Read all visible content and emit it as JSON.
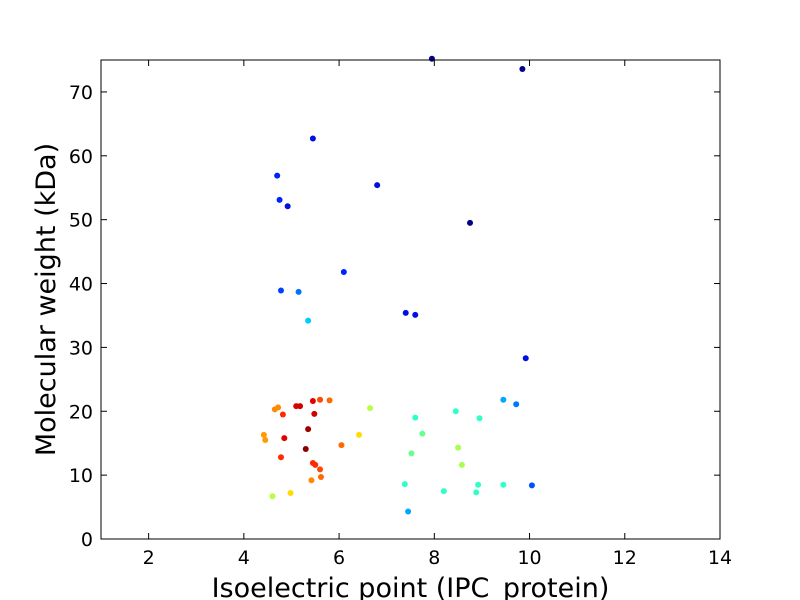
{
  "chart_data": {
    "type": "scatter",
    "xlabel": "Isoelectric point (IPC_protein)",
    "ylabel": "Molecular weight (kDa)",
    "xlim": [
      1,
      14
    ],
    "ylim": [
      0,
      75
    ],
    "xticks": [
      2,
      4,
      6,
      8,
      10,
      12,
      14
    ],
    "yticks": [
      0,
      10,
      20,
      30,
      40,
      50,
      60,
      70
    ],
    "grid": false,
    "color_scale": "jet (color by point density)",
    "points": [
      {
        "x": 7.95,
        "y": 75.2,
        "color": "#00008b"
      },
      {
        "x": 9.85,
        "y": 73.6,
        "color": "#00008b"
      },
      {
        "x": 5.45,
        "y": 62.7,
        "color": "#0010e0"
      },
      {
        "x": 4.7,
        "y": 56.9,
        "color": "#0022ff"
      },
      {
        "x": 6.8,
        "y": 55.4,
        "color": "#0010e0"
      },
      {
        "x": 4.75,
        "y": 53.1,
        "color": "#0022ff"
      },
      {
        "x": 4.92,
        "y": 52.1,
        "color": "#0010e0"
      },
      {
        "x": 8.75,
        "y": 49.5,
        "color": "#00008b"
      },
      {
        "x": 6.1,
        "y": 41.8,
        "color": "#0022ff"
      },
      {
        "x": 4.78,
        "y": 38.9,
        "color": "#0040ff"
      },
      {
        "x": 5.15,
        "y": 38.7,
        "color": "#0070ff"
      },
      {
        "x": 7.4,
        "y": 35.4,
        "color": "#0010e0"
      },
      {
        "x": 7.6,
        "y": 35.1,
        "color": "#0010e0"
      },
      {
        "x": 5.35,
        "y": 34.2,
        "color": "#00ccff"
      },
      {
        "x": 9.92,
        "y": 28.3,
        "color": "#0010e0"
      },
      {
        "x": 5.6,
        "y": 21.8,
        "color": "#ff4800"
      },
      {
        "x": 5.8,
        "y": 21.7,
        "color": "#ff6a00"
      },
      {
        "x": 5.45,
        "y": 21.6,
        "color": "#e00000"
      },
      {
        "x": 9.45,
        "y": 21.8,
        "color": "#00a8ff"
      },
      {
        "x": 9.72,
        "y": 21.1,
        "color": "#0078ff"
      },
      {
        "x": 5.1,
        "y": 20.8,
        "color": "#e00000"
      },
      {
        "x": 5.18,
        "y": 20.8,
        "color": "#d00000"
      },
      {
        "x": 4.72,
        "y": 20.6,
        "color": "#ff8a00"
      },
      {
        "x": 4.65,
        "y": 20.3,
        "color": "#ff8a00"
      },
      {
        "x": 6.65,
        "y": 20.5,
        "color": "#b8ff40"
      },
      {
        "x": 8.45,
        "y": 20.0,
        "color": "#30ffc8"
      },
      {
        "x": 5.48,
        "y": 19.6,
        "color": "#d00000"
      },
      {
        "x": 4.82,
        "y": 19.5,
        "color": "#ff2a00"
      },
      {
        "x": 7.6,
        "y": 19.0,
        "color": "#30ffc8"
      },
      {
        "x": 8.95,
        "y": 18.9,
        "color": "#30ffc8"
      },
      {
        "x": 5.35,
        "y": 17.2,
        "color": "#a00000"
      },
      {
        "x": 7.75,
        "y": 16.5,
        "color": "#68ff90"
      },
      {
        "x": 4.42,
        "y": 16.3,
        "color": "#ff9a00"
      },
      {
        "x": 6.42,
        "y": 16.3,
        "color": "#ffdc00"
      },
      {
        "x": 4.85,
        "y": 15.8,
        "color": "#e00000"
      },
      {
        "x": 4.45,
        "y": 15.5,
        "color": "#ff9a00"
      },
      {
        "x": 6.05,
        "y": 14.7,
        "color": "#ff6a00"
      },
      {
        "x": 8.5,
        "y": 14.3,
        "color": "#a8ff50"
      },
      {
        "x": 5.3,
        "y": 14.1,
        "color": "#8b0000"
      },
      {
        "x": 7.52,
        "y": 13.4,
        "color": "#68ff90"
      },
      {
        "x": 4.78,
        "y": 12.8,
        "color": "#ff2a00"
      },
      {
        "x": 5.45,
        "y": 11.9,
        "color": "#ff2a00"
      },
      {
        "x": 8.58,
        "y": 11.6,
        "color": "#a8ff50"
      },
      {
        "x": 5.5,
        "y": 11.6,
        "color": "#ff2a00"
      },
      {
        "x": 5.6,
        "y": 10.9,
        "color": "#ff4800"
      },
      {
        "x": 5.62,
        "y": 9.7,
        "color": "#ff6a00"
      },
      {
        "x": 5.42,
        "y": 9.2,
        "color": "#ff8a00"
      },
      {
        "x": 7.38,
        "y": 8.6,
        "color": "#30ffc8"
      },
      {
        "x": 8.92,
        "y": 8.5,
        "color": "#30ffc8"
      },
      {
        "x": 9.45,
        "y": 8.5,
        "color": "#30ffc8"
      },
      {
        "x": 10.05,
        "y": 8.4,
        "color": "#0050ff"
      },
      {
        "x": 8.2,
        "y": 7.5,
        "color": "#30ffc8"
      },
      {
        "x": 8.88,
        "y": 7.3,
        "color": "#30ffc8"
      },
      {
        "x": 4.98,
        "y": 7.2,
        "color": "#ffdc00"
      },
      {
        "x": 4.6,
        "y": 6.7,
        "color": "#b8ff40"
      },
      {
        "x": 7.45,
        "y": 4.3,
        "color": "#00a8ff"
      }
    ]
  }
}
